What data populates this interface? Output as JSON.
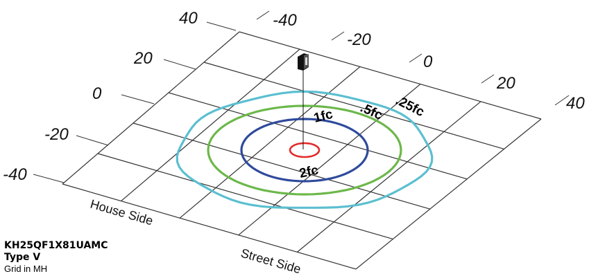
{
  "fixture": {
    "model": "KH25QF1X81UAMC",
    "type": "Type V",
    "grid_note": "Grid in MH"
  },
  "axes": {
    "left_ticks": [
      "40",
      "20",
      "0",
      "-20",
      "-40"
    ],
    "top_ticks": [
      "-40",
      "-20",
      "0",
      "20",
      "40"
    ]
  },
  "side_labels": {
    "house": "House Side",
    "street": "Street Side"
  },
  "isolines": [
    {
      "label": ".25fc",
      "footcandles": 0.25,
      "color": "#5bbfd0"
    },
    {
      "label": ".5fc",
      "footcandles": 0.5,
      "color": "#6cb84a"
    },
    {
      "label": "1fc",
      "footcandles": 1,
      "color": "#2f4a9c"
    },
    {
      "label": "2fc",
      "footcandles": 2,
      "color": "#e32a2a"
    }
  ],
  "colors": {
    "grid": "#333333",
    "fixture": "#111111"
  }
}
